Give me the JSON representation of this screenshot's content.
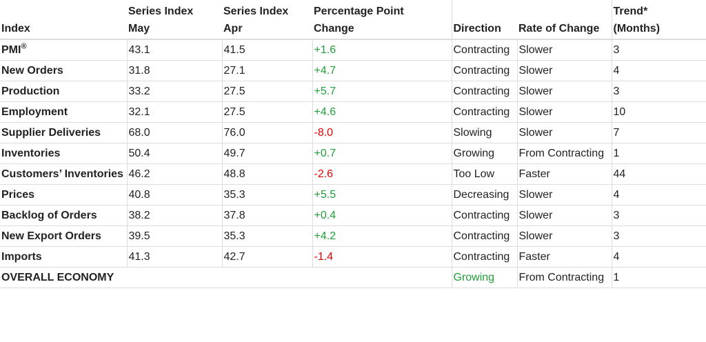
{
  "headers": {
    "index": "Index",
    "may_line1": "Series Index",
    "may_line2": "May",
    "apr_line1": "Series Index",
    "apr_line2": "Apr",
    "chg_line1": "Percentage Point",
    "chg_line2": "Change",
    "direction": "Direction",
    "rate": "Rate of Change",
    "trend_line1": "Trend*",
    "trend_line2": "(Months)"
  },
  "colors": {
    "positive": "#1f9e3a",
    "negative": "#e00000"
  },
  "rows": [
    {
      "index": "PMI",
      "sup": "®",
      "may": "43.1",
      "apr": "41.5",
      "change": "+1.6",
      "sign": "pos",
      "direction": "Contracting",
      "rate": "Slower",
      "trend": "3"
    },
    {
      "index": "New Orders",
      "may": "31.8",
      "apr": "27.1",
      "change": "+4.7",
      "sign": "pos",
      "direction": "Contracting",
      "rate": "Slower",
      "trend": "4"
    },
    {
      "index": "Production",
      "may": "33.2",
      "apr": "27.5",
      "change": "+5.7",
      "sign": "pos",
      "direction": "Contracting",
      "rate": "Slower",
      "trend": "3"
    },
    {
      "index": "Employment",
      "may": "32.1",
      "apr": "27.5",
      "change": "+4.6",
      "sign": "pos",
      "direction": "Contracting",
      "rate": "Slower",
      "trend": "10"
    },
    {
      "index": "Supplier Deliveries",
      "may": "68.0",
      "apr": "76.0",
      "change": "-8.0",
      "sign": "neg",
      "direction": "Slowing",
      "rate": "Slower",
      "trend": "7"
    },
    {
      "index": "Inventories",
      "may": "50.4",
      "apr": "49.7",
      "change": "+0.7",
      "sign": "pos",
      "direction": "Growing",
      "rate": "From Contracting",
      "trend": "1"
    },
    {
      "index": "Customers’ Inventories",
      "may": "46.2",
      "apr": "48.8",
      "change": "-2.6",
      "sign": "neg",
      "direction": "Too Low",
      "rate": "Faster",
      "trend": "44"
    },
    {
      "index": "Prices",
      "may": "40.8",
      "apr": "35.3",
      "change": "+5.5",
      "sign": "pos",
      "direction": "Decreasing",
      "rate": "Slower",
      "trend": "4"
    },
    {
      "index": "Backlog of Orders",
      "may": "38.2",
      "apr": "37.8",
      "change": "+0.4",
      "sign": "pos",
      "direction": "Contracting",
      "rate": "Slower",
      "trend": "3"
    },
    {
      "index": "New Export Orders",
      "may": "39.5",
      "apr": "35.3",
      "change": "+4.2",
      "sign": "pos",
      "direction": "Contracting",
      "rate": "Slower",
      "trend": "3"
    },
    {
      "index": "Imports",
      "may": "41.3",
      "apr": "42.7",
      "change": "-1.4",
      "sign": "neg",
      "direction": "Contracting",
      "rate": "Faster",
      "trend": "4"
    }
  ],
  "overall": {
    "label": "OVERALL ECONOMY",
    "direction": "Growing",
    "sign": "pos",
    "rate": "From Contracting",
    "trend": "1"
  }
}
